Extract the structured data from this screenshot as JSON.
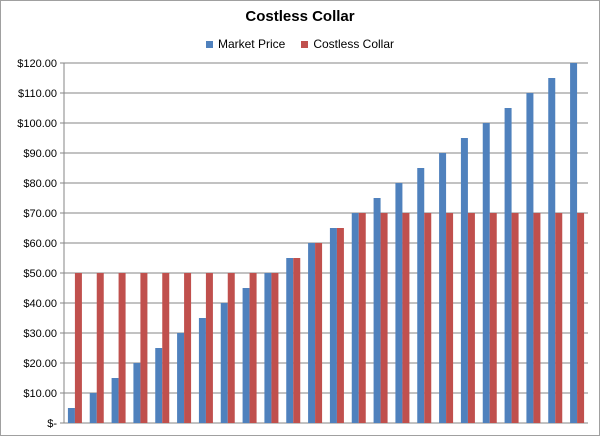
{
  "chart_data": {
    "type": "bar",
    "title": "Costless Collar",
    "xlabel": "",
    "ylabel": "",
    "ylim": [
      0,
      120
    ],
    "yticks": [
      {
        "value": 0,
        "label": "$-"
      },
      {
        "value": 10,
        "label": "$10.00"
      },
      {
        "value": 20,
        "label": "$20.00"
      },
      {
        "value": 30,
        "label": "$30.00"
      },
      {
        "value": 40,
        "label": "$40.00"
      },
      {
        "value": 50,
        "label": "$50.00"
      },
      {
        "value": 60,
        "label": "$60.00"
      },
      {
        "value": 70,
        "label": "$70.00"
      },
      {
        "value": 80,
        "label": "$80.00"
      },
      {
        "value": 90,
        "label": "$90.00"
      },
      {
        "value": 100,
        "label": "$100.00"
      },
      {
        "value": 110,
        "label": "$110.00"
      },
      {
        "value": 120,
        "label": "$120.00"
      }
    ],
    "grid": true,
    "legend_position": "top",
    "series": [
      {
        "name": "Market Price",
        "color": "#4f81bd",
        "values": [
          5,
          10,
          15,
          20,
          25,
          30,
          35,
          40,
          45,
          50,
          55,
          60,
          65,
          70,
          75,
          80,
          85,
          90,
          95,
          100,
          105,
          110,
          115,
          120
        ]
      },
      {
        "name": "Costless Collar",
        "color": "#c0504d",
        "values": [
          50,
          50,
          50,
          50,
          50,
          50,
          50,
          50,
          50,
          50,
          55,
          60,
          65,
          70,
          70,
          70,
          70,
          70,
          70,
          70,
          70,
          70,
          70,
          70
        ]
      }
    ]
  }
}
